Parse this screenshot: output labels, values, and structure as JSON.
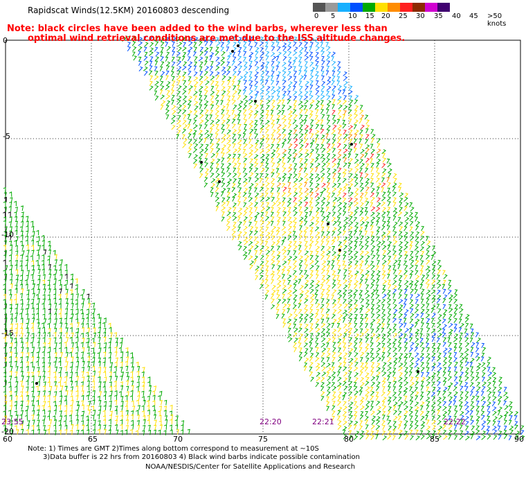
{
  "title": "Rapidscat Winds(12.5KM) 20160803 descending",
  "note_line1": "Note: black circles have been added to the wind barbs, wherever less than",
  "note_line2": "optimal wind retrieval conditions are met due to the ISS altitude changes.",
  "legend": {
    "unit": "knots",
    "labels": [
      "0",
      "5",
      "10",
      "15",
      "20",
      "25",
      "30",
      "35",
      "40",
      "45",
      ">50 knots"
    ],
    "colors": [
      "#555555",
      "#9a9a9a",
      "#18b0ff",
      "#0050ff",
      "#00aa00",
      "#ffe000",
      "#ff8c00",
      "#ff2020",
      "#8b2a00",
      "#d000d0",
      "#400070"
    ]
  },
  "axes": {
    "lat_labels": [
      "0",
      "-5",
      "-10",
      "-15",
      "-20"
    ],
    "lon_labels": [
      "60",
      "65",
      "70",
      "75",
      "80",
      "85",
      "90"
    ]
  },
  "time_labels": [
    "23:55",
    "22:20",
    "22:21",
    "22:22"
  ],
  "footer": {
    "line1": "Note: 1) Times are GMT 2)Times along bottom correspond to measurement at ~10S",
    "line2": "3)Data buffer is 22 hrs from 20160803 4) Black wind barbs indicate possible contamination",
    "line3": "NOAA/NESDIS/Center for Satellite Applications and Research"
  }
}
